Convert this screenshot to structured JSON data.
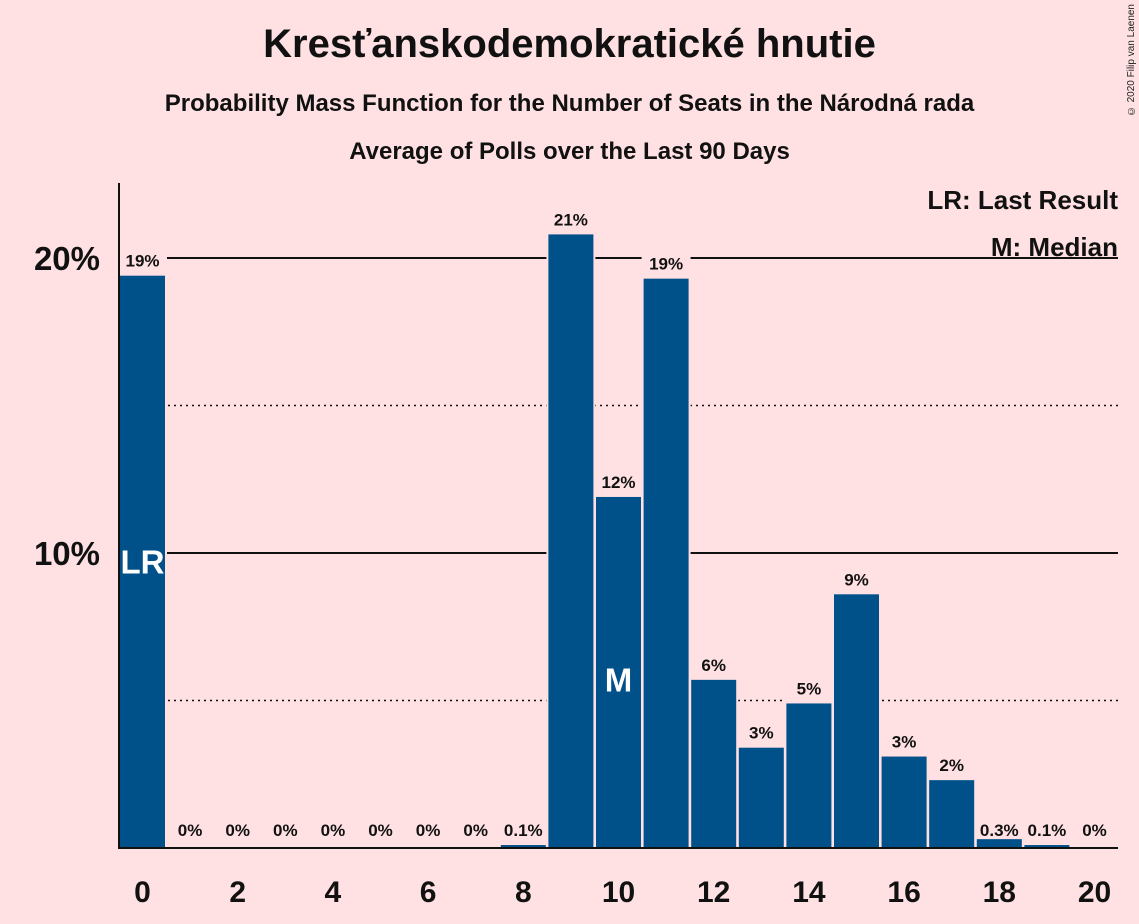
{
  "chart_data": {
    "type": "bar",
    "title": "Kresťanskodemokratické hnutie",
    "subtitle": "Probability Mass Function for the Number of Seats in the Národná rada",
    "subtitle2": "Average of Polls over the Last 90 Days",
    "copyright": "© 2020 Filip van Laenen",
    "categories": [
      0,
      1,
      2,
      3,
      4,
      5,
      6,
      7,
      8,
      9,
      10,
      11,
      12,
      13,
      14,
      15,
      16,
      17,
      18,
      19,
      20
    ],
    "values": [
      19.4,
      0,
      0,
      0,
      0,
      0,
      0,
      0,
      0.1,
      20.8,
      11.9,
      19.3,
      5.7,
      3.4,
      4.9,
      8.6,
      3.1,
      2.3,
      0.3,
      0.1,
      0
    ],
    "value_labels": [
      "19%",
      "0%",
      "0%",
      "0%",
      "0%",
      "0%",
      "0%",
      "0%",
      "0.1%",
      "21%",
      "12%",
      "19%",
      "6%",
      "3%",
      "5%",
      "9%",
      "3%",
      "2%",
      "0.3%",
      "0.1%",
      "0%"
    ],
    "xtick_labels": [
      "0",
      "2",
      "4",
      "6",
      "8",
      "10",
      "12",
      "14",
      "16",
      "18",
      "20"
    ],
    "ytick_labels": [
      "10%",
      "20%"
    ],
    "ylim": [
      0,
      22.6
    ],
    "last_result_seat": 0,
    "median_seat": 10,
    "last_result_marker": "LR",
    "median_marker": "M",
    "legend": [
      "LR: Last Result",
      "M: Median"
    ],
    "bar_color": "#00508a",
    "background": "#ffe1e3"
  }
}
